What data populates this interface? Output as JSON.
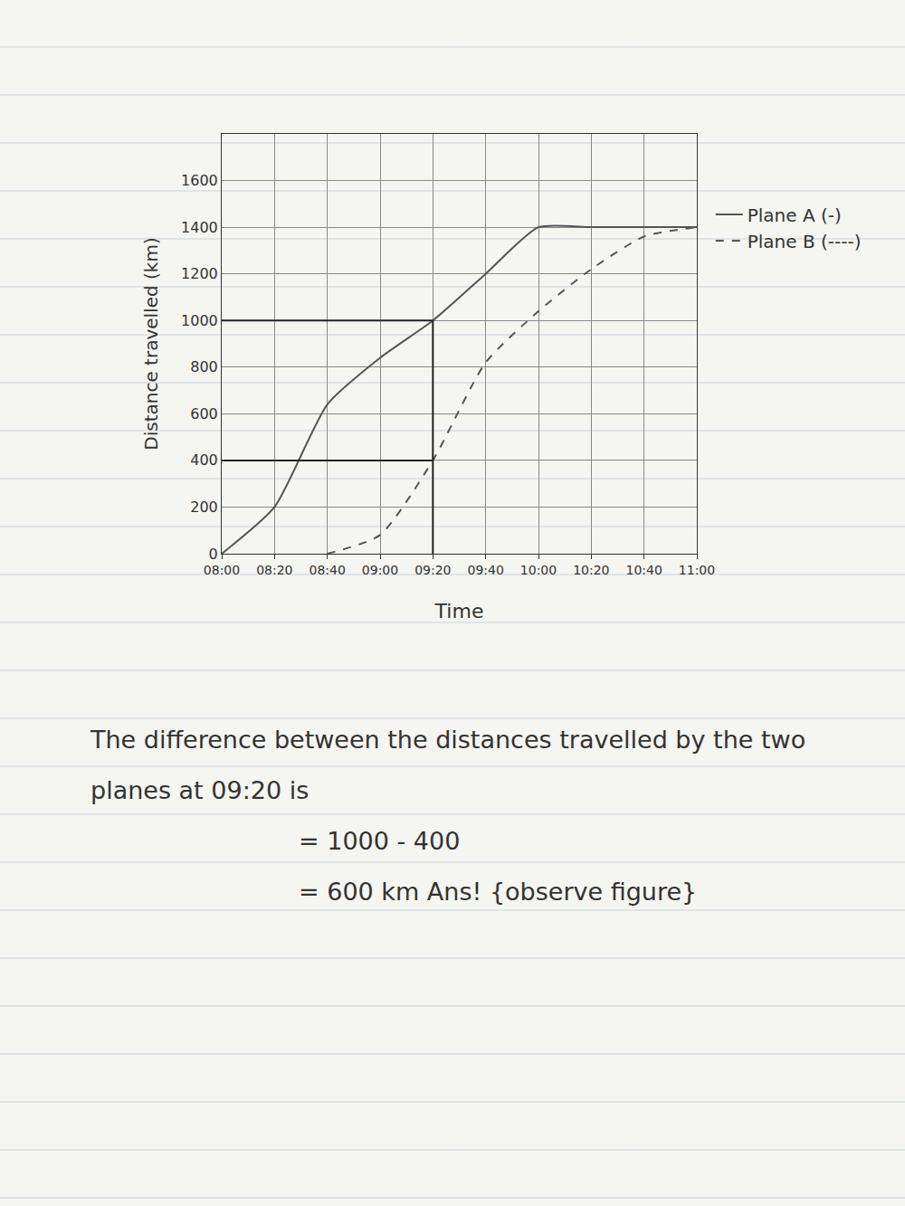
{
  "chart_data": {
    "type": "line",
    "x_label": "Time",
    "y_label": "Distance travelled (km)",
    "categories": [
      "08:00",
      "08:20",
      "08:40",
      "09:00",
      "09:20",
      "09:40",
      "10:00",
      "10:20",
      "10:40",
      "11:00"
    ],
    "series": [
      {
        "name": "Plane A (-)",
        "color": "#555555",
        "line_style": "solid",
        "values": [
          0,
          200,
          640,
          840,
          1000,
          1200,
          1400,
          1400,
          1400,
          1400
        ]
      },
      {
        "name": "Plane B (----)",
        "color": "#555555",
        "line_style": "dash",
        "values": [
          null,
          null,
          0,
          80,
          400,
          820,
          1040,
          1220,
          1360,
          1400
        ]
      }
    ],
    "ylim": [
      0,
      1800
    ],
    "yticks": [
      0,
      200,
      400,
      600,
      800,
      1000,
      1200,
      1400,
      1600
    ],
    "grid": true,
    "legend": "upper right",
    "guide_lines": {
      "x": "09:20",
      "y": [
        400,
        1000
      ]
    },
    "annotations": [
      "The difference between the distances travelled by the two planes at 09:20 is",
      "= 1000 - 400",
      "= 600 km Ans! {observe figure}"
    ]
  }
}
